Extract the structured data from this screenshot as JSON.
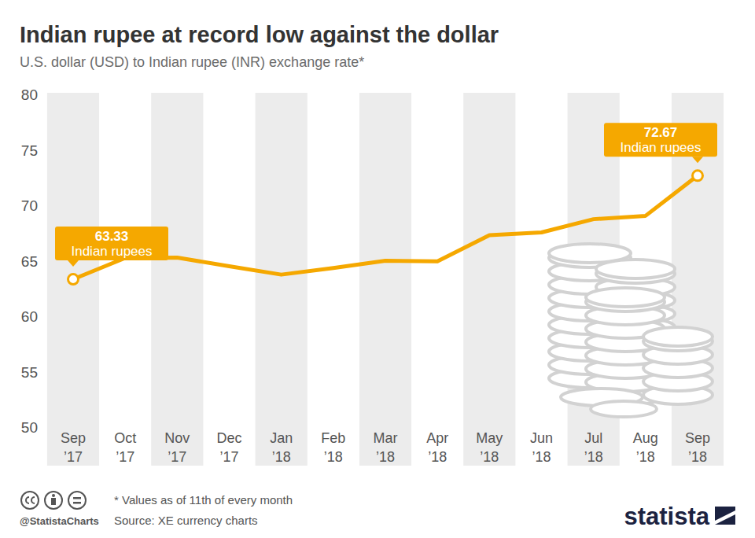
{
  "chart_data": {
    "type": "line",
    "title": "Indian rupee at record low against the dollar",
    "subtitle": "U.S. dollar (USD) to Indian rupee (INR) exchange rate*",
    "categories": [
      "Sep ’17",
      "Oct ’17",
      "Nov ’17",
      "Dec ’17",
      "Jan ’18",
      "Feb ’18",
      "Mar ’18",
      "Apr ’18",
      "May ’18",
      "Jun ’18",
      "Jul ’18",
      "Aug ’18",
      "Sep ’18"
    ],
    "values": [
      63.33,
      65.25,
      65.28,
      64.5,
      63.75,
      64.35,
      65.0,
      64.95,
      67.3,
      67.55,
      68.75,
      69.05,
      72.67
    ],
    "value_labels": [
      "63.33",
      null,
      null,
      null,
      null,
      null,
      null,
      null,
      null,
      null,
      null,
      null,
      "72.67"
    ],
    "value_label_note": "Indian rupees",
    "color": "#f5a800",
    "marker": "circle",
    "ylim": [
      50,
      80
    ],
    "yticks": [
      50,
      55,
      60,
      65,
      70,
      75,
      80
    ],
    "grid": false,
    "footnote": "* Values as of 11th of every month",
    "source": "Source: XE currency charts",
    "handle": "@StatistaCharts",
    "logo": "statista"
  }
}
